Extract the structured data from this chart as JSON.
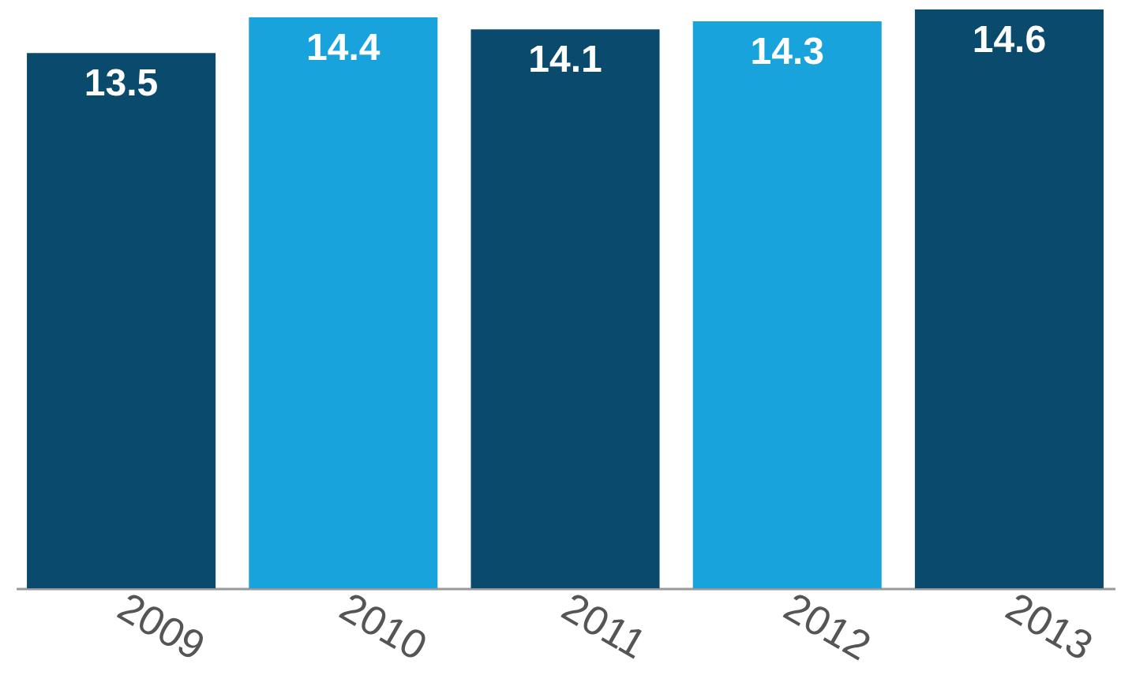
{
  "chart_data": {
    "type": "bar",
    "categories": [
      "2009",
      "2010",
      "2011",
      "2012",
      "2013"
    ],
    "values": [
      13.5,
      14.4,
      14.1,
      14.3,
      14.6
    ],
    "colors": [
      "#0a4a6c",
      "#18a3dc",
      "#0a4a6c",
      "#18a3dc",
      "#0a4a6c"
    ],
    "data_labels": true,
    "grid": false,
    "legend": false
  }
}
